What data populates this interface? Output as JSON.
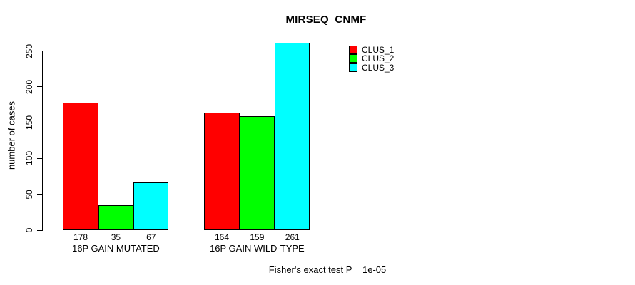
{
  "chart_data": {
    "type": "bar",
    "title": "MIRSEQ_CNMF",
    "ylabel": "number of cases",
    "xlabel": "",
    "categories": [
      "16P GAIN MUTATED",
      "16P GAIN WILD-TYPE"
    ],
    "series": [
      {
        "name": "CLUS_1",
        "color": "#ff0000",
        "values": [
          178,
          164
        ]
      },
      {
        "name": "CLUS_2",
        "color": "#00ff00",
        "values": [
          35,
          159
        ]
      },
      {
        "name": "CLUS_3",
        "color": "#00ffff",
        "values": [
          67,
          261
        ]
      }
    ],
    "yticks": [
      0,
      50,
      100,
      150,
      200,
      250
    ],
    "ylim": [
      0,
      261
    ],
    "bar_value_labels": [
      [
        178,
        35,
        67
      ],
      [
        164,
        159,
        261
      ]
    ],
    "grid": false,
    "legend_position": "top-right",
    "bar_border_color": "#000000",
    "annotation": "Fisher's exact test P = 1e-05"
  }
}
